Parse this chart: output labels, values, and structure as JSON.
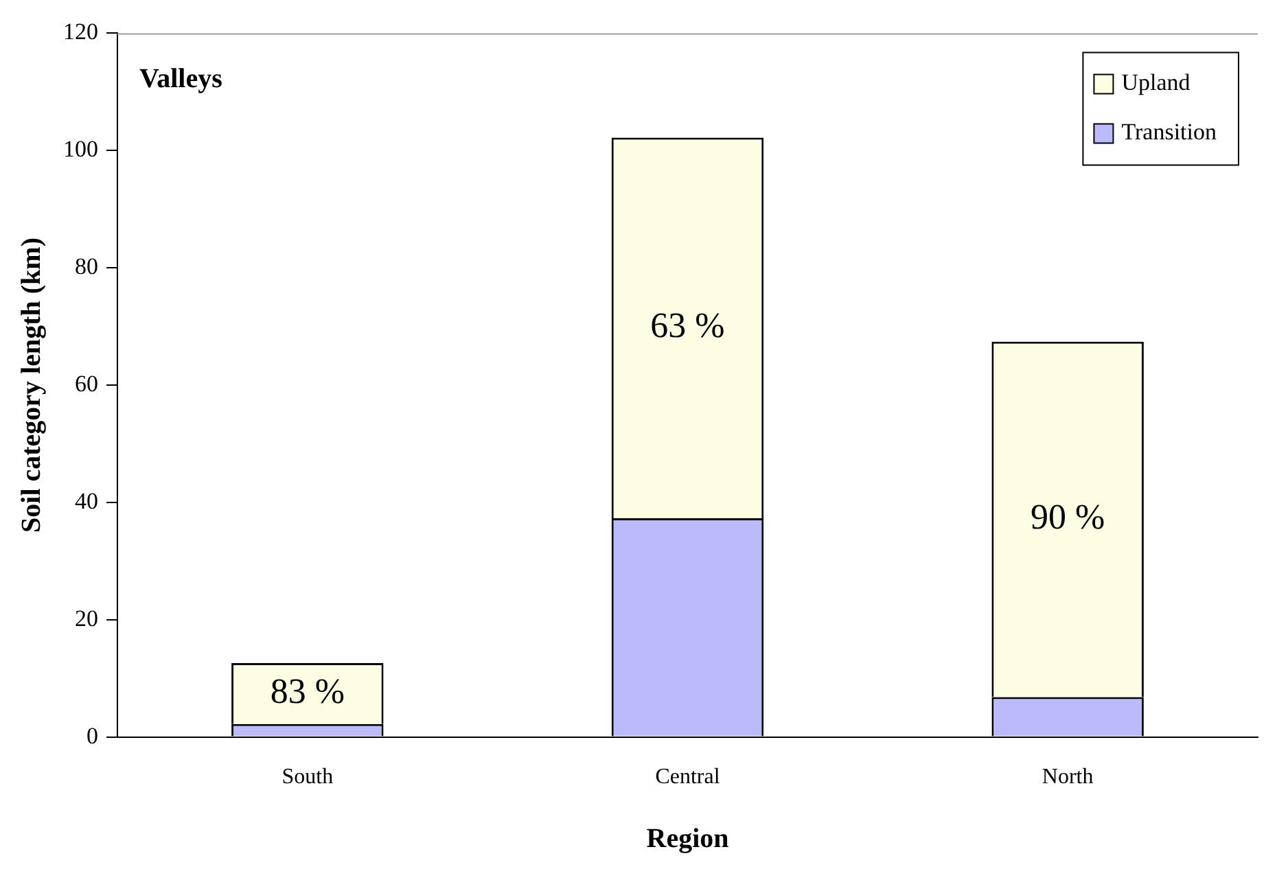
{
  "chart_data": {
    "type": "bar",
    "title": "Valleys",
    "xlabel": "Region",
    "ylabel": "Soil category length (km)",
    "categories": [
      "South",
      "Central",
      "North"
    ],
    "series": [
      {
        "name": "Transition",
        "color": "#bbbbfb",
        "values": [
          2.2,
          37.3,
          6.8
        ]
      },
      {
        "name": "Upland",
        "color": "#fdfde3",
        "values": [
          10.4,
          64.9,
          60.6
        ]
      }
    ],
    "stacked": true,
    "ylim": [
      0,
      120
    ],
    "yticks": [
      0,
      20,
      40,
      60,
      80,
      100,
      120
    ],
    "grid": false,
    "legend": "top right",
    "annotations": [
      "83 %",
      "63 %",
      "90 %"
    ]
  }
}
